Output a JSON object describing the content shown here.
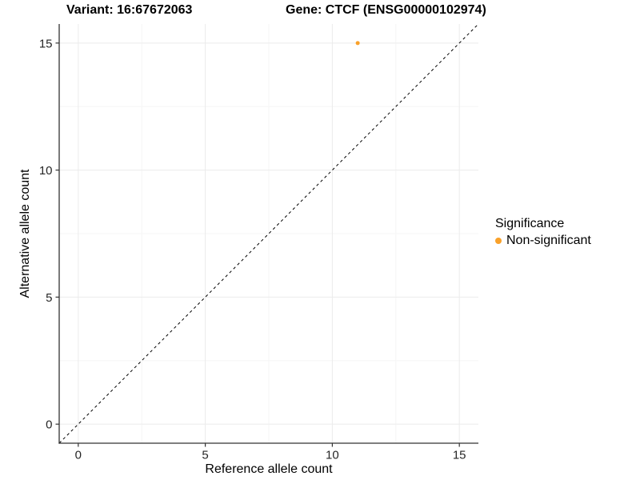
{
  "chart_data": {
    "type": "scatter",
    "title_left": "Variant: 16:67672063",
    "title_right": "Gene: CTCF (ENSG00000102974)",
    "xlabel": "Reference allele count",
    "ylabel": "Alternative allele count",
    "xlim": [
      -0.75,
      15.75
    ],
    "ylim": [
      -0.75,
      15.75
    ],
    "x_ticks": [
      0,
      5,
      10,
      15
    ],
    "y_ticks": [
      0,
      5,
      10,
      15
    ],
    "x_minor_ticks": [
      2.5,
      7.5,
      12.5
    ],
    "y_minor_ticks": [
      2.5,
      7.5,
      12.5
    ],
    "grid": "on",
    "legend_position": "right",
    "identity_line": {
      "style": "dashed",
      "slope": 1,
      "intercept": 0,
      "color": "#000000"
    },
    "series": [
      {
        "name": "Non-significant",
        "color": "#F9A12A",
        "points": [
          {
            "x": 11,
            "y": 15
          }
        ]
      }
    ],
    "legend": {
      "title": "Significance",
      "entries": [
        {
          "label": "Non-significant",
          "color": "#F9A12A"
        }
      ]
    },
    "style": {
      "background": "#FFFFFF",
      "grid_major_color": "#EBEBEB",
      "grid_minor_color": "#F6F6F6",
      "axis_line_color": "#333333",
      "tick_color": "#333333",
      "tick_label_color": "#262626",
      "text_color": "#000000"
    }
  }
}
